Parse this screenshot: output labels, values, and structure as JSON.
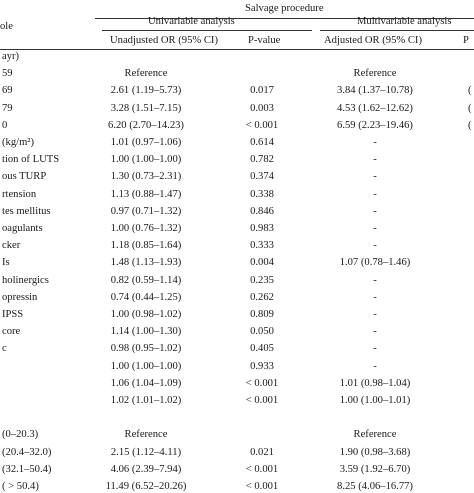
{
  "header": {
    "group_title": "Salvage procedure",
    "col_variable": "ole",
    "univariable": "Univariable analysis",
    "multivariable": "Multivariable analysis",
    "unadj_or": "Unadjusted OR (95% CI)",
    "p_value_1": "P-value",
    "adj_or": "Adjusted OR (95% CI)",
    "p_value_2": "P"
  },
  "rows": [
    {
      "label": "ayr)",
      "unadj": "",
      "p1": "",
      "adj": "",
      "p2": ""
    },
    {
      "label": "59",
      "unadj": "Reference",
      "p1": "",
      "adj": "Reference",
      "p2": ""
    },
    {
      "label": "69",
      "unadj": "2.61 (1.19–5.73)",
      "p1": "0.017",
      "adj": "3.84 (1.37–10.78)",
      "p2": "("
    },
    {
      "label": "79",
      "unadj": "3.28 (1.51–7.15)",
      "p1": "0.003",
      "adj": "4.53 (1.62–12.62)",
      "p2": "("
    },
    {
      "label": "0",
      "unadj": "6.20 (2.70–14.23)",
      "p1": "< 0.001",
      "adj": "6.59 (2.23–19.46)",
      "p2": "("
    },
    {
      "label": "(kg/m²)",
      "unadj": "1.01 (0.97–1.06)",
      "p1": "0.614",
      "adj": "-",
      "p2": ""
    },
    {
      "label": "tion of LUTS",
      "unadj": "1.00 (1.00–1.00)",
      "p1": "0.782",
      "adj": "-",
      "p2": ""
    },
    {
      "label": "ous TURP",
      "unadj": "1.30 (0.73–2.31)",
      "p1": "0.374",
      "adj": "-",
      "p2": ""
    },
    {
      "label": "rtension",
      "unadj": "1.13 (0.88–1.47)",
      "p1": "0.338",
      "adj": "-",
      "p2": ""
    },
    {
      "label": "tes mellitus",
      "unadj": "0.97 (0.71–1.32)",
      "p1": "0.846",
      "adj": "-",
      "p2": ""
    },
    {
      "label": "oagulants",
      "unadj": "1.00 (0.76–1.32)",
      "p1": "0.983",
      "adj": "-",
      "p2": ""
    },
    {
      "label": "cker",
      "unadj": "1.18 (0.85–1.64)",
      "p1": "0.333",
      "adj": "-",
      "p2": ""
    },
    {
      "label": "Is",
      "unadj": "1.48 (1.13–1.93)",
      "p1": "0.004",
      "adj": "1.07 (0.78–1.46)",
      "p2": ""
    },
    {
      "label": "holinergics",
      "unadj": "0.82 (0.59–1.14)",
      "p1": "0.235",
      "adj": "-",
      "p2": ""
    },
    {
      "label": "opressin",
      "unadj": "0.74 (0.44–1.25)",
      "p1": "0.262",
      "adj": "-",
      "p2": ""
    },
    {
      "label": "IPSS",
      "unadj": "1.00 (0.98–1.02)",
      "p1": "0.809",
      "adj": "-",
      "p2": ""
    },
    {
      "label": "core",
      "unadj": "1.14 (1.00–1.30)",
      "p1": "0.050",
      "adj": "-",
      "p2": ""
    },
    {
      "label": "c",
      "unadj": "0.98 (0.95–1.02)",
      "p1": "0.405",
      "adj": "-",
      "p2": ""
    },
    {
      "label": "",
      "unadj": "1.00 (1.00–1.00)",
      "p1": "0.933",
      "adj": "-",
      "p2": ""
    },
    {
      "label": "",
      "unadj": "1.06 (1.04–1.09)",
      "p1": "< 0.001",
      "adj": "1.01 (0.98–1.04)",
      "p2": ""
    },
    {
      "label": "",
      "unadj": "1.02 (1.01–1.02)",
      "p1": "< 0.001",
      "adj": "1.00 (1.00–1.01)",
      "p2": ""
    },
    {
      "label": "",
      "unadj": "",
      "p1": "",
      "adj": "",
      "p2": ""
    },
    {
      "label": "(0–20.3)",
      "unadj": "Reference",
      "p1": "",
      "adj": "Reference",
      "p2": ""
    },
    {
      "label": "(20.4–32.0)",
      "unadj": "2.15 (1.12–4.11)",
      "p1": "0.021",
      "adj": "1.90 (0.98–3.68)",
      "p2": ""
    },
    {
      "label": "(32.1–50.4)",
      "unadj": "4.06 (2.39–7.94)",
      "p1": "< 0.001",
      "adj": "3.59 (1.92–6.70)",
      "p2": ""
    },
    {
      "label": "( > 50.4)",
      "unadj": "11.49 (6.52–20.26)",
      "p1": "< 0.001",
      "adj": "8.25 (4.06–16.77)",
      "p2": ""
    }
  ]
}
